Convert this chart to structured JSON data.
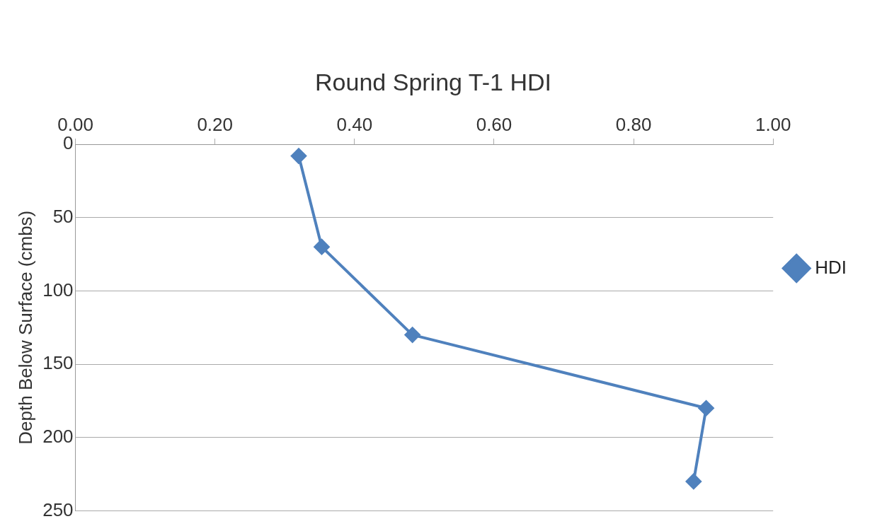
{
  "chart_data": {
    "type": "line",
    "title": "Round Spring T-1 HDI",
    "ylabel": "Depth Below Surface (cmbs)",
    "x": [
      0.32,
      0.353,
      0.483,
      0.904,
      0.886
    ],
    "series": [
      {
        "name": "HDI",
        "color": "#4f81bd",
        "values": [
          8,
          70,
          130,
          180,
          230
        ]
      }
    ],
    "xlim": [
      0,
      1
    ],
    "xticks": [
      {
        "value": 0,
        "label": "0.00"
      },
      {
        "value": 0.2,
        "label": "0.20"
      },
      {
        "value": 0.4,
        "label": "0.40"
      },
      {
        "value": 0.6,
        "label": "0.60"
      },
      {
        "value": 0.8,
        "label": "0.80"
      },
      {
        "value": 1,
        "label": "1.00"
      }
    ],
    "ylim": [
      250,
      0
    ],
    "yticks": [
      0,
      50,
      100,
      150,
      200,
      250
    ],
    "grid": "y",
    "legend": "right",
    "marker": "diamond",
    "line_style": "solid"
  }
}
